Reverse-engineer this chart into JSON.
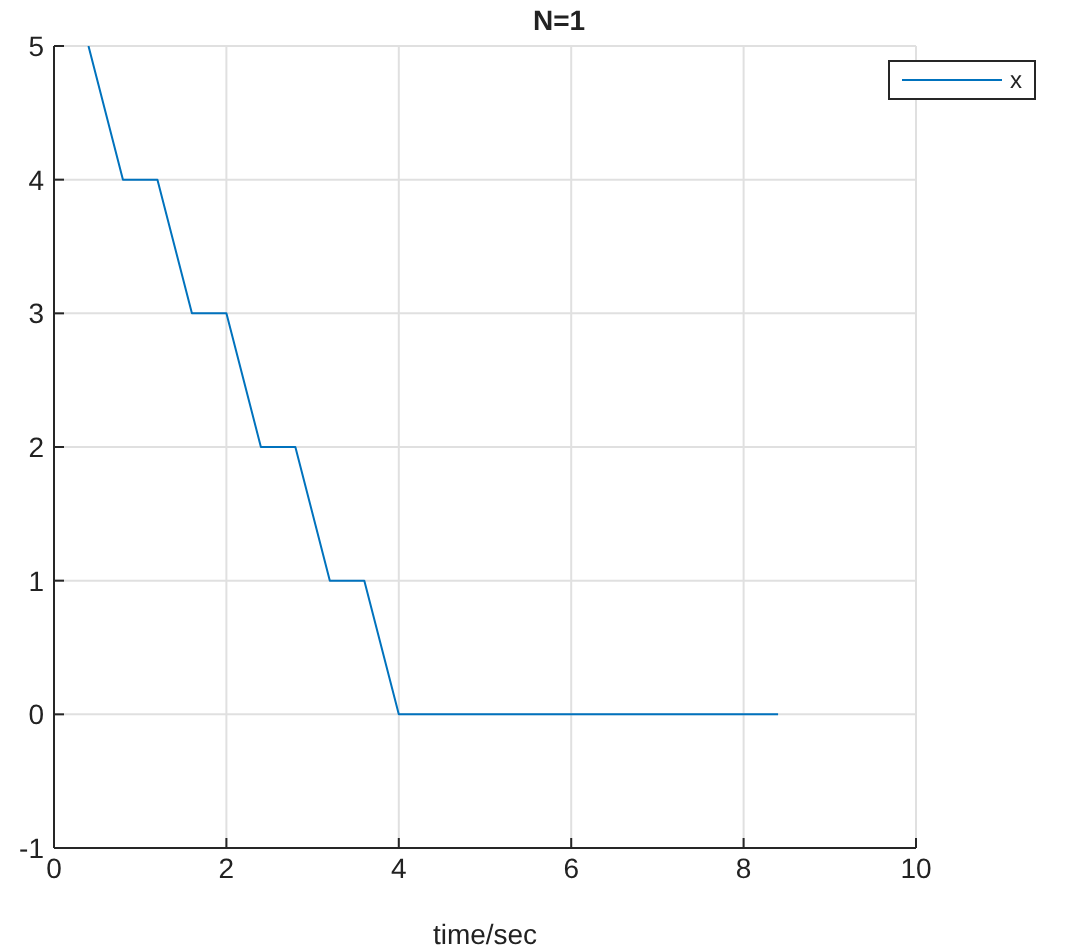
{
  "chart_data": {
    "type": "line",
    "title": "N=1",
    "xlabel": "time/sec",
    "x": [
      0.4,
      0.8,
      1.2,
      1.6,
      2.0,
      2.4,
      2.8,
      3.2,
      3.6,
      4.0,
      8.4
    ],
    "series": [
      {
        "name": "x",
        "color": "#0072bd",
        "values": [
          5,
          4,
          4,
          3,
          3,
          2,
          2,
          1,
          1,
          0,
          0
        ]
      }
    ],
    "xlim": [
      0,
      10
    ],
    "xticks": [
      0,
      2,
      4,
      6,
      8,
      10
    ],
    "ylim": [
      -1,
      5
    ],
    "yticks": [
      -1,
      0,
      1,
      2,
      3,
      4,
      5
    ],
    "grid": true,
    "legend": "top right",
    "marker": "none",
    "line_style": "solid"
  }
}
